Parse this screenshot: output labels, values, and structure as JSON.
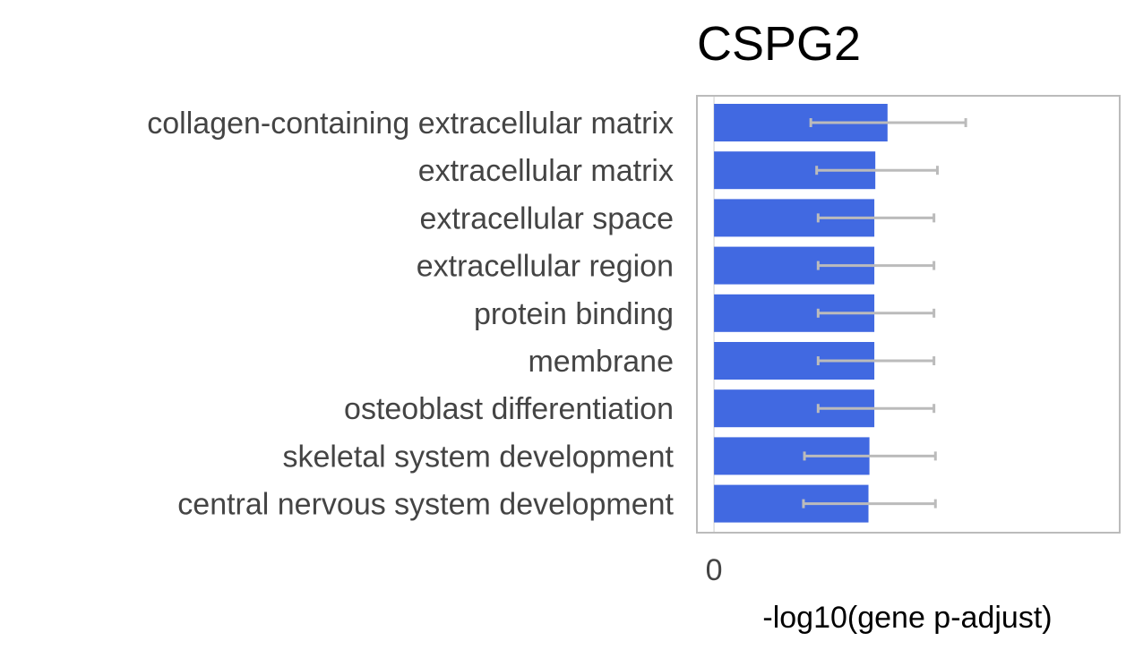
{
  "chart_data": {
    "type": "bar",
    "orientation": "horizontal",
    "title": "CSPG2",
    "xlabel": "-log10(gene p-adjust)",
    "ylabel": "",
    "xlim": [
      -0.35,
      8.3
    ],
    "xticks": [
      {
        "value": 0,
        "label": "0"
      }
    ],
    "grid": false,
    "categories": [
      "collagen-containing extracellular matrix",
      "extracellular matrix",
      "extracellular space",
      "extracellular region",
      "protein binding",
      "membrane",
      "osteoblast differentiation",
      "skeletal system development",
      "central nervous system development"
    ],
    "values": [
      3.55,
      3.3,
      3.28,
      3.28,
      3.28,
      3.28,
      3.28,
      3.18,
      3.16
    ],
    "error_low": [
      1.98,
      2.1,
      2.13,
      2.13,
      2.13,
      2.13,
      2.13,
      1.85,
      1.83
    ],
    "error_high": [
      5.15,
      4.57,
      4.5,
      4.5,
      4.5,
      4.5,
      4.5,
      4.53,
      4.53
    ],
    "colors": {
      "bar": "#4169e1",
      "error_bar": "#bbbbbb",
      "frame": "#bbbbbb",
      "zero_line": "#dddddd",
      "label_text": "#444444",
      "title_text": "#000000"
    }
  }
}
